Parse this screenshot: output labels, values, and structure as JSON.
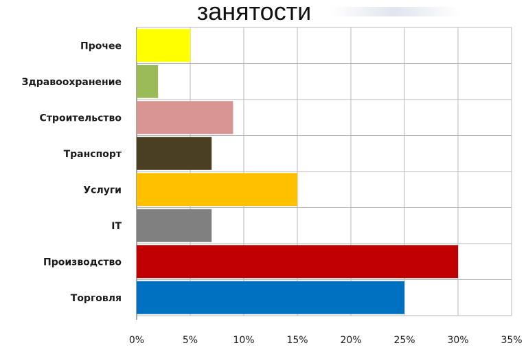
{
  "slide": {
    "title": "занятости"
  },
  "chart_data": {
    "type": "bar",
    "orientation": "horizontal",
    "title": "",
    "xlabel": "",
    "ylabel": "",
    "xlim": [
      0,
      35
    ],
    "grid": true,
    "legend": "none",
    "categories": [
      "Прочее",
      "Здравоохранение",
      "Строительство",
      "Транспорт",
      "Услуги",
      "IT",
      "Производство",
      "Торговля"
    ],
    "values": [
      5,
      2,
      9,
      7,
      15,
      7,
      30,
      25
    ],
    "colors": [
      "#ffff00",
      "#9bbb59",
      "#d99594",
      "#4a3f22",
      "#ffc000",
      "#808080",
      "#c00000",
      "#0070c0"
    ],
    "ticks": [
      {
        "value": 0,
        "label": "0%"
      },
      {
        "value": 5,
        "label": "5%"
      },
      {
        "value": 10,
        "label": "10%"
      },
      {
        "value": 15,
        "label": "15%"
      },
      {
        "value": 20,
        "label": "20%"
      },
      {
        "value": 25,
        "label": "25%"
      },
      {
        "value": 30,
        "label": "30%"
      },
      {
        "value": 35,
        "label": "35%"
      }
    ]
  }
}
